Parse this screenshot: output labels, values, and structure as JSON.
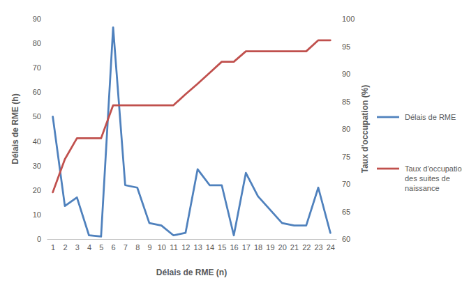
{
  "chart_data": {
    "type": "line",
    "x_label": "Délais de RME (n)",
    "y_label": "Délais de RME (h)",
    "y2_label": "Taux d'occupation (%)",
    "categories": [
      1,
      2,
      3,
      4,
      5,
      6,
      7,
      8,
      9,
      10,
      11,
      12,
      13,
      14,
      15,
      16,
      17,
      18,
      19,
      20,
      21,
      22,
      23,
      24
    ],
    "ylim": [
      0,
      90
    ],
    "yticks": [
      0,
      10,
      20,
      30,
      40,
      50,
      60,
      70,
      80,
      90
    ],
    "y2lim": [
      60,
      100
    ],
    "y2ticks": [
      60,
      65,
      70,
      75,
      80,
      85,
      90,
      95,
      100
    ],
    "grid": false,
    "legend": "right",
    "series": [
      {
        "name": "Délais de RME",
        "color": "#4f81bd",
        "values": [
          50,
          13.5,
          17,
          1.5,
          1,
          86.5,
          22,
          21,
          6.5,
          5.5,
          1.5,
          2.5,
          28.5,
          22,
          22,
          1.5,
          27,
          17.5,
          12,
          6.5,
          5.5,
          5.5,
          21,
          2.5
        ]
      },
      {
        "name": "Taux d'occupation des suites de naissance",
        "color": "#c0504d",
        "axis": "y2",
        "values": [
          68.5,
          74.5,
          78.3,
          78.3,
          78.3,
          84.3,
          84.3,
          84.3,
          84.3,
          84.3,
          84.3,
          86.3,
          88.2,
          90.2,
          92.2,
          92.2,
          94.1,
          94.1,
          94.1,
          94.1,
          94.1,
          94.1,
          96.1,
          96.1
        ]
      }
    ]
  }
}
